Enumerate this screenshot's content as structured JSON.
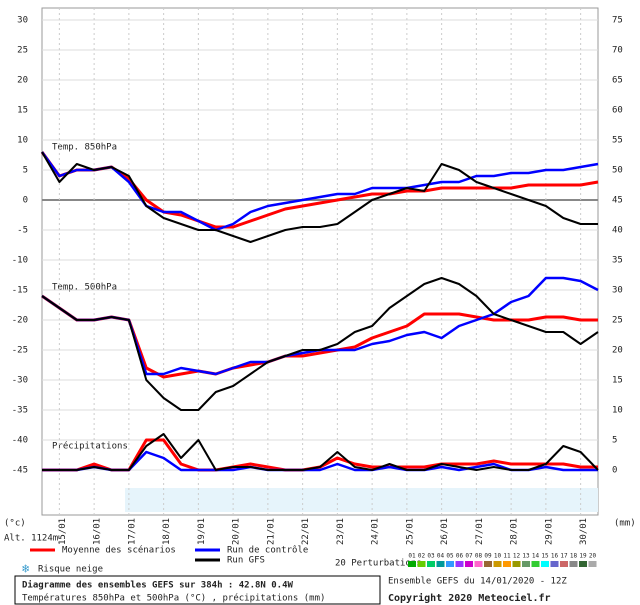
{
  "chart_data": {
    "type": "line",
    "panel_labels": [
      "Temp. 850hPa",
      "Temp. 500hPa",
      "Précipitations"
    ],
    "left_unit": "(°c)",
    "right_unit": "(mm)",
    "altitude": "Alt. 1124m",
    "x": [
      14.5,
      15,
      15.5,
      16,
      16.5,
      17,
      17.5,
      18,
      18.5,
      19,
      19.5,
      20,
      20.5,
      21,
      21.5,
      22,
      22.5,
      23,
      23.5,
      24,
      24.5,
      25,
      25.5,
      26,
      26.5,
      27,
      27.5,
      28,
      28.5,
      29,
      29.5,
      30,
      30.5
    ],
    "xlim": [
      14.5,
      30.5
    ],
    "xticks": [
      {
        "value": 15,
        "label": "15/01"
      },
      {
        "value": 16,
        "label": "16/01"
      },
      {
        "value": 17,
        "label": "17/01"
      },
      {
        "value": 18,
        "label": "18/01"
      },
      {
        "value": 19,
        "label": "19/01"
      },
      {
        "value": 20,
        "label": "20/01"
      },
      {
        "value": 21,
        "label": "21/01"
      },
      {
        "value": 22,
        "label": "22/01"
      },
      {
        "value": 23,
        "label": "23/01"
      },
      {
        "value": 24,
        "label": "24/01"
      },
      {
        "value": 25,
        "label": "25/01"
      },
      {
        "value": 26,
        "label": "26/01"
      },
      {
        "value": 27,
        "label": "27/01"
      },
      {
        "value": 28,
        "label": "28/01"
      },
      {
        "value": 29,
        "label": "29/01"
      },
      {
        "value": 30,
        "label": "30/01"
      }
    ],
    "ylim": [
      -45,
      30
    ],
    "yticks": [
      30,
      25,
      20,
      15,
      10,
      5,
      0,
      -5,
      -10,
      -15,
      -20,
      -25,
      -30,
      -35,
      -40,
      -45
    ],
    "y2lim": [
      0,
      75
    ],
    "y2ticks": [
      75,
      70,
      65,
      60,
      55,
      50,
      45,
      40,
      35,
      30,
      25,
      20,
      15,
      10,
      5,
      0
    ],
    "grid": true,
    "legend": [
      {
        "name": "Moyenne des scénarios",
        "color": "#ff0000"
      },
      {
        "name": "Run de contrôle",
        "color": "#0000ff"
      },
      {
        "name": "Run GFS",
        "color": "#000000"
      }
    ],
    "series": [
      {
        "color": "#ff0000",
        "width": 3,
        "values": [
          8,
          4,
          5,
          5,
          5.5,
          3.5,
          0,
          -2,
          -2.5,
          -3.5,
          -4.5,
          -4.5,
          -3.5,
          -2.5,
          -1.5,
          -1,
          -0.5,
          0,
          0.5,
          1,
          1,
          1.5,
          1.5,
          2,
          2,
          2,
          2,
          2,
          2.5,
          2.5,
          2.5,
          2.5,
          3
        ]
      },
      {
        "color": "#0000ff",
        "width": 2.5,
        "values": [
          8,
          4,
          5,
          5,
          5.5,
          3,
          -1,
          -2,
          -2,
          -3.5,
          -5,
          -4,
          -2,
          -1,
          -0.5,
          0,
          0.5,
          1,
          1,
          2,
          2,
          2,
          2.5,
          3,
          3,
          4,
          4,
          4.5,
          4.5,
          5,
          5,
          5.5,
          6
        ]
      },
      {
        "color": "#000000",
        "width": 2,
        "values": [
          8,
          3,
          6,
          5,
          5.5,
          4,
          -1,
          -3,
          -4,
          -5,
          -5,
          -6,
          -7,
          -6,
          -5,
          -4.5,
          -4.5,
          -4,
          -2,
          0,
          1,
          2,
          1.5,
          6,
          5,
          3,
          2,
          1,
          0,
          -1,
          -3,
          -4,
          -4
        ]
      },
      {
        "color": "#ff0000",
        "width": 3,
        "values": [
          -16,
          -18,
          -20,
          -20,
          -19.5,
          -20,
          -28,
          -29.5,
          -29,
          -28.5,
          -29,
          -28,
          -27.5,
          -27,
          -26,
          -26,
          -25.5,
          -25,
          -24.5,
          -23,
          -22,
          -21,
          -19,
          -19,
          -19,
          -19.5,
          -20,
          -20,
          -20,
          -19.5,
          -19.5,
          -20,
          -20
        ]
      },
      {
        "color": "#0000ff",
        "width": 2.5,
        "values": [
          -16,
          -18,
          -20,
          -20,
          -19.5,
          -20,
          -29,
          -29,
          -28,
          -28.5,
          -29,
          -28,
          -27,
          -27,
          -26,
          -25.5,
          -25,
          -25,
          -25,
          -24,
          -23.5,
          -22.5,
          -22,
          -23,
          -21,
          -20,
          -19,
          -17,
          -16,
          -13,
          -13,
          -13.5,
          -15
        ]
      },
      {
        "color": "#000000",
        "width": 2,
        "values": [
          -16,
          -18,
          -20,
          -20,
          -19.5,
          -20,
          -30,
          -33,
          -35,
          -35,
          -32,
          -31,
          -29,
          -27,
          -26,
          -25,
          -25,
          -24,
          -22,
          -21,
          -18,
          -16,
          -14,
          -13,
          -14,
          -16,
          -19,
          -20,
          -21,
          -22,
          -22,
          -24,
          -22
        ]
      },
      {
        "color": "#ff0000",
        "width": 3,
        "axis": "y2",
        "values": [
          0,
          0,
          0,
          1,
          0,
          0,
          5,
          5,
          1,
          0,
          0,
          0.5,
          1,
          0.5,
          0,
          0,
          0.5,
          2,
          1,
          0.5,
          0.5,
          0.5,
          0.5,
          1,
          1,
          1,
          1.5,
          1,
          1,
          1,
          1,
          0.5,
          0.5
        ]
      },
      {
        "color": "#0000ff",
        "width": 2.5,
        "axis": "y2",
        "values": [
          0,
          0,
          0,
          0.5,
          0,
          0,
          3,
          2,
          0,
          0,
          0,
          0,
          0.5,
          0,
          0,
          0,
          0,
          1,
          0,
          0,
          0.5,
          0,
          0,
          0.5,
          0,
          0.5,
          1,
          0,
          0,
          0.5,
          0,
          0,
          0
        ]
      },
      {
        "color": "#000000",
        "width": 2,
        "axis": "y2",
        "values": [
          0,
          0,
          0,
          0.5,
          0,
          0,
          4,
          6,
          2,
          5,
          0,
          0.5,
          0.5,
          0,
          0,
          0,
          0.5,
          3,
          0.5,
          0,
          1,
          0,
          0,
          1,
          0.5,
          0,
          0.5,
          0,
          0,
          1,
          4,
          3,
          0
        ]
      }
    ],
    "perturbations_label": "20 Perturbations",
    "members": [
      {
        "label": "01",
        "color": "#00aa00"
      },
      {
        "label": "02",
        "color": "#66cc00"
      },
      {
        "label": "03",
        "color": "#00cc66"
      },
      {
        "label": "04",
        "color": "#009999"
      },
      {
        "label": "05",
        "color": "#3399ff"
      },
      {
        "label": "06",
        "color": "#9933ff"
      },
      {
        "label": "07",
        "color": "#cc00cc"
      },
      {
        "label": "08",
        "color": "#ff66cc"
      },
      {
        "label": "09",
        "color": "#996633"
      },
      {
        "label": "10",
        "color": "#cc9900"
      },
      {
        "label": "11",
        "color": "#ff9900"
      },
      {
        "label": "12",
        "color": "#999900"
      },
      {
        "label": "13",
        "color": "#669966"
      },
      {
        "label": "14",
        "color": "#33cc33"
      },
      {
        "label": "15",
        "color": "#00ffff"
      },
      {
        "label": "16",
        "color": "#6666cc"
      },
      {
        "label": "17",
        "color": "#cc6666"
      },
      {
        "label": "18",
        "color": "#888888"
      },
      {
        "label": "19",
        "color": "#336633"
      },
      {
        "label": "20",
        "color": "#aaaaaa"
      }
    ],
    "snow_label": "Risque neige",
    "footer_title": "Diagramme des ensembles GEFS sur 384h : 42.8N 0.4W",
    "footer_subtitle": "Températures 850hPa et 500hPa (°C) , précipitations (mm)",
    "run_info": "Ensemble GEFS du 14/01/2020 - 12Z",
    "copyright": "Copyright 2020 Meteociel.fr"
  }
}
